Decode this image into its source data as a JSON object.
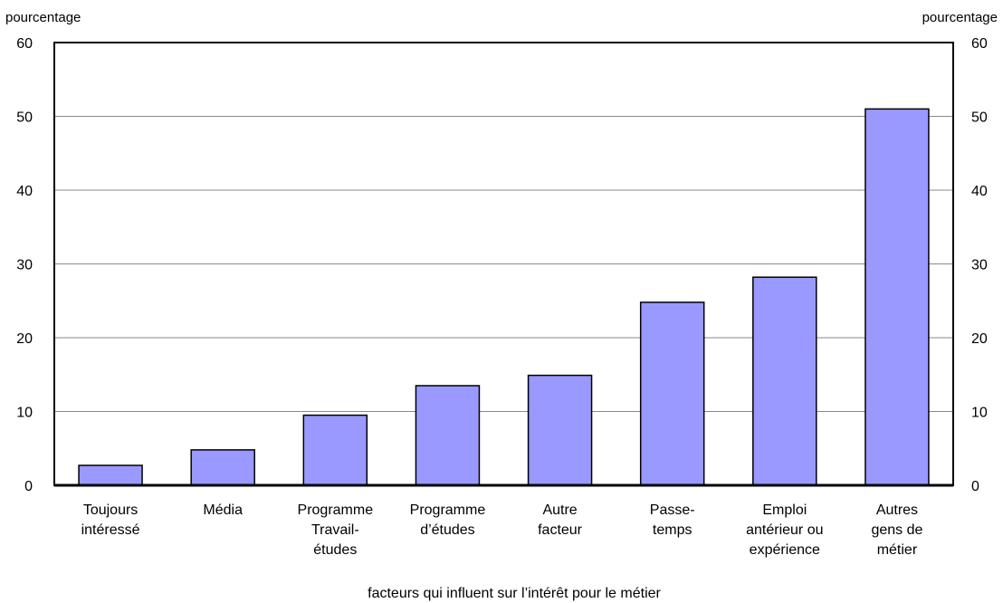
{
  "chart_data": {
    "type": "bar",
    "categories": [
      [
        "Toujours",
        "intéressé"
      ],
      [
        "Média"
      ],
      [
        "Programme",
        "Travail-",
        "études"
      ],
      [
        "Programme",
        "d’études"
      ],
      [
        "Autre",
        "facteur"
      ],
      [
        "Passe-",
        "temps"
      ],
      [
        "Emploi",
        "antérieur ou",
        "expérience"
      ],
      [
        "Autres",
        "gens de",
        "métier"
      ]
    ],
    "values": [
      2.7,
      4.8,
      9.5,
      13.5,
      14.9,
      24.8,
      28.2,
      51.0
    ],
    "ylabel_left": "pourcentage",
    "ylabel_right": "pourcentage",
    "xlabel": "facteurs qui influent sur l’intérêt pour le métier",
    "ylim": [
      0,
      60
    ],
    "yticks": [
      0,
      10,
      20,
      30,
      40,
      50,
      60
    ],
    "grid": true,
    "bar_color": "#9999ff"
  }
}
